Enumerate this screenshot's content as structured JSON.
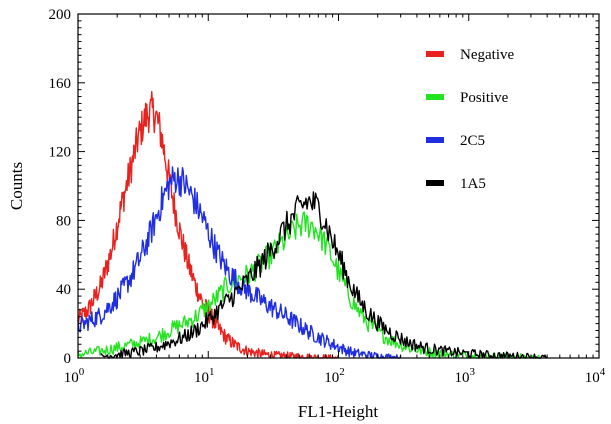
{
  "chart_data": {
    "type": "line",
    "title": "",
    "xlabel": "FL1-Height",
    "ylabel": "Counts",
    "x_scale": "log",
    "xlim": [
      1,
      10000
    ],
    "ylim": [
      0,
      200
    ],
    "x_ticks": [
      {
        "base": "10",
        "exp": "0"
      },
      {
        "base": "10",
        "exp": "1"
      },
      {
        "base": "10",
        "exp": "2"
      },
      {
        "base": "10",
        "exp": "3"
      },
      {
        "base": "10",
        "exp": "4"
      }
    ],
    "y_ticks": [
      "0",
      "40",
      "80",
      "120",
      "160",
      "200"
    ],
    "grid": false,
    "legend_position": "top-right",
    "series": [
      {
        "name": "Negative",
        "color": "#e8231f",
        "x": [
          1,
          1.2,
          1.5,
          1.8,
          2.1,
          2.5,
          2.9,
          3.3,
          3.7,
          4.0,
          4.4,
          4.9,
          5.5,
          6.2,
          7.0,
          8.0,
          9.2,
          10.5,
          12,
          14,
          16.5,
          20,
          25,
          32,
          45,
          65,
          100
        ],
        "y": [
          22,
          28,
          42,
          62,
          85,
          108,
          128,
          140,
          144,
          140,
          128,
          108,
          88,
          70,
          55,
          42,
          31,
          24,
          17,
          11,
          7,
          4,
          2.5,
          1.5,
          1,
          0.5,
          0
        ]
      },
      {
        "name": "Positive",
        "color": "#22e41f",
        "x": [
          1,
          1.5,
          2,
          3,
          4,
          5,
          6.5,
          8,
          10,
          12,
          14,
          17,
          20,
          25,
          30,
          36,
          43,
          50,
          57,
          64,
          72,
          80,
          90,
          105,
          120,
          140,
          170,
          210,
          260,
          340,
          450,
          650,
          1000,
          1600,
          2500,
          3500
        ],
        "y": [
          2,
          4,
          6,
          9,
          12,
          16,
          20,
          24,
          30,
          36,
          42,
          46,
          48,
          54,
          60,
          66,
          72,
          77,
          78,
          77,
          72,
          66,
          58,
          46,
          37,
          28,
          20,
          14,
          10,
          6,
          4,
          2.5,
          1.5,
          1,
          0.5,
          0
        ]
      },
      {
        "name": "2C5",
        "color": "#1f2ee0",
        "x": [
          1,
          1.5,
          2,
          2.5,
          3,
          3.5,
          4,
          4.5,
          5,
          5.6,
          6.3,
          7,
          8,
          9,
          10,
          11.5,
          13,
          15,
          18,
          22,
          27,
          33,
          40,
          50,
          60,
          75,
          90,
          110,
          130,
          160,
          200,
          250,
          300
        ],
        "y": [
          18,
          25,
          35,
          46,
          58,
          70,
          82,
          93,
          101,
          105,
          103,
          98,
          90,
          82,
          73,
          63,
          55,
          48,
          42,
          37,
          32,
          28,
          24,
          19,
          15,
          11,
          8,
          5,
          3,
          2,
          1,
          0.5,
          0
        ]
      },
      {
        "name": "1A5",
        "color": "#000000",
        "x": [
          1.5,
          2,
          3,
          4,
          5,
          6.5,
          8,
          10,
          12,
          14,
          17,
          20,
          25,
          30,
          36,
          43,
          50,
          57,
          64,
          72,
          80,
          90,
          105,
          120,
          140,
          170,
          210,
          260,
          340,
          450,
          650,
          1000,
          1600,
          2500,
          3500,
          4000
        ],
        "y": [
          1,
          2,
          4,
          6,
          9,
          12,
          16,
          22,
          28,
          33,
          39,
          45,
          54,
          62,
          72,
          80,
          87,
          91,
          90,
          86,
          78,
          68,
          56,
          45,
          35,
          26,
          19,
          14,
          9,
          6,
          4,
          2.5,
          1.5,
          1,
          0.5,
          0
        ]
      }
    ]
  }
}
